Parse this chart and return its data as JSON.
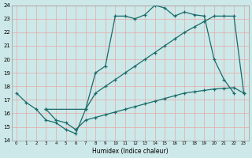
{
  "xlabel": "Humidex (Indice chaleur)",
  "bg_color": "#cde8e8",
  "grid_color": "#e8a8a8",
  "line_color": "#1a6b6b",
  "xlim": [
    -0.5,
    23.5
  ],
  "ylim": [
    14,
    24
  ],
  "xticks": [
    0,
    1,
    2,
    3,
    4,
    5,
    6,
    7,
    8,
    9,
    10,
    11,
    12,
    13,
    14,
    15,
    16,
    17,
    18,
    19,
    20,
    21,
    22,
    23
  ],
  "yticks": [
    14,
    15,
    16,
    17,
    18,
    19,
    20,
    21,
    22,
    23,
    24
  ],
  "line1_x": [
    0,
    1,
    2,
    3,
    4,
    5,
    6,
    7,
    8,
    9,
    10,
    11,
    12,
    13,
    14,
    15,
    16,
    17,
    18,
    19,
    20,
    21,
    22
  ],
  "line1_y": [
    17.5,
    16.8,
    16.3,
    15.5,
    15.3,
    14.8,
    14.5,
    16.3,
    19.0,
    19.5,
    23.2,
    23.2,
    23.0,
    23.3,
    24.0,
    23.8,
    23.2,
    23.5,
    23.3,
    23.2,
    20.0,
    18.5,
    17.5
  ],
  "line2_x": [
    3,
    4,
    5,
    6,
    7,
    8,
    9,
    10,
    11,
    12,
    13,
    14,
    15,
    16,
    17,
    18,
    19,
    20,
    21,
    22,
    23
  ],
  "line2_y": [
    16.3,
    15.5,
    15.3,
    14.8,
    15.5,
    15.7,
    15.9,
    16.1,
    16.3,
    16.5,
    16.7,
    16.9,
    17.1,
    17.3,
    17.5,
    17.6,
    17.7,
    17.8,
    17.85,
    17.9,
    17.5
  ],
  "line3_x": [
    3,
    7,
    8,
    9,
    10,
    11,
    12,
    13,
    14,
    15,
    16,
    17,
    18,
    19,
    20,
    21,
    22,
    23
  ],
  "line3_y": [
    16.3,
    16.3,
    17.5,
    18.0,
    18.5,
    19.0,
    19.5,
    20.0,
    20.5,
    21.0,
    21.5,
    22.0,
    22.4,
    22.8,
    23.2,
    23.2,
    23.2,
    17.5
  ]
}
